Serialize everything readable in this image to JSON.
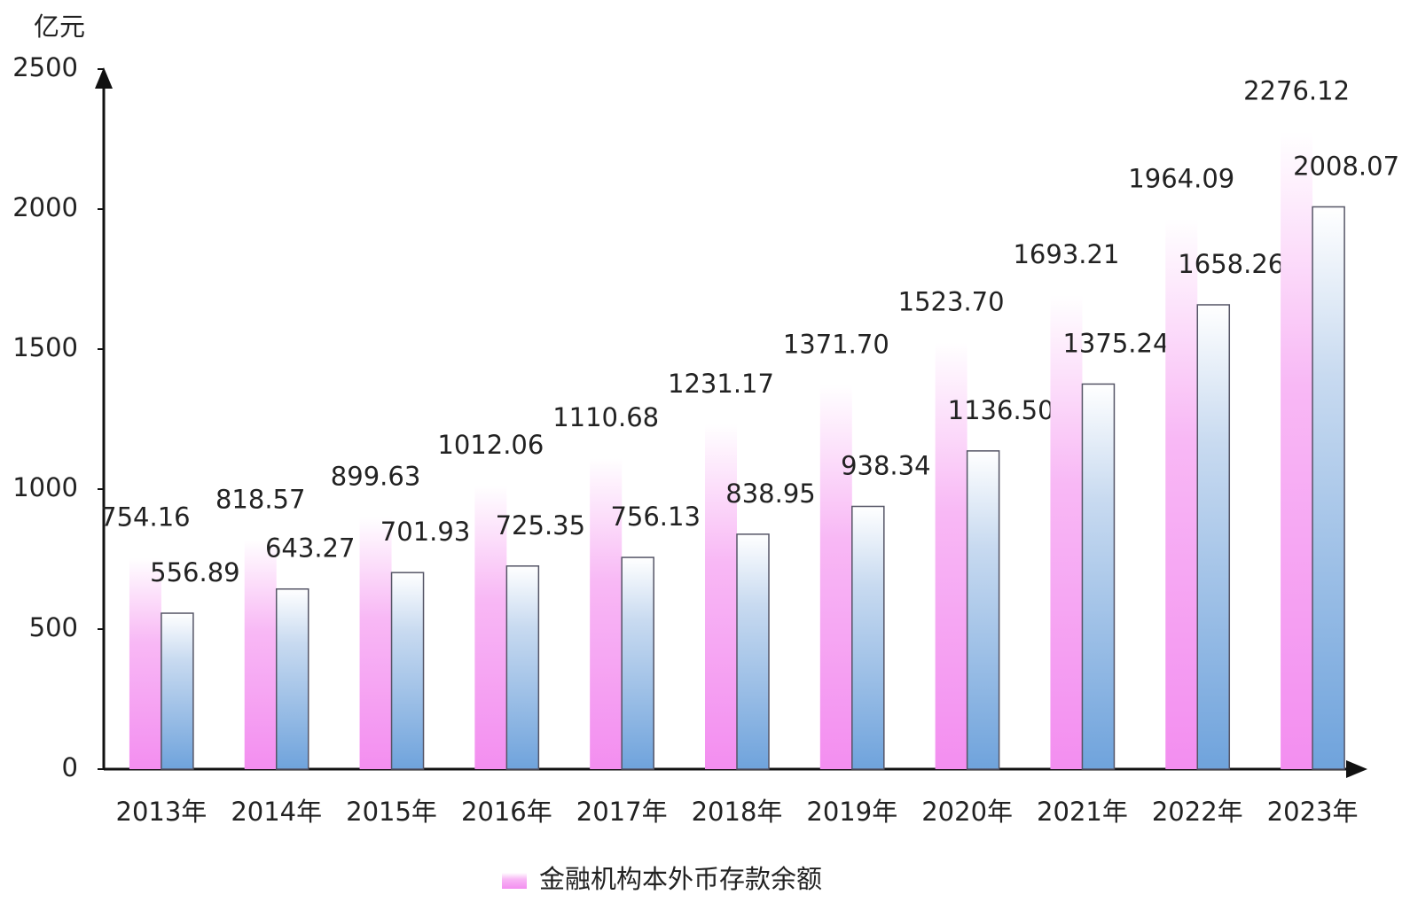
{
  "chart_data": {
    "type": "bar",
    "y_label": "亿元",
    "categories": [
      "2013年",
      "2014年",
      "2015年",
      "2016年",
      "2017年",
      "2018年",
      "2019年",
      "2020年",
      "2021年",
      "2022年",
      "2023年"
    ],
    "series": [
      {
        "name": "金融机构本外币存款余额",
        "color": "#f38ef0",
        "values": [
          754.16,
          818.57,
          899.63,
          1012.06,
          1110.68,
          1231.17,
          1371.7,
          1523.7,
          1693.21,
          1964.09,
          2276.12
        ],
        "value_labels": [
          "754.16",
          "818.57",
          "899.63",
          "1012.06",
          "1110.68",
          "1231.17",
          "1371.70",
          "1523.70",
          "1693.21",
          "1964.09",
          "2276.12"
        ]
      },
      {
        "color": "#6fa3dc",
        "values": [
          556.89,
          643.27,
          701.93,
          725.35,
          756.13,
          838.95,
          938.34,
          1136.5,
          1375.24,
          1658.26,
          2008.07
        ],
        "value_labels": [
          "556.89",
          "643.27",
          "701.93",
          "725.35",
          "756.13",
          "838.95",
          "938.34",
          "1136.50",
          "1375.24",
          "1658.26",
          "2008.07"
        ]
      }
    ],
    "ylim": [
      0,
      2500
    ],
    "yticks": [
      0,
      500,
      1000,
      1500,
      2000,
      2500
    ],
    "grid": false
  }
}
